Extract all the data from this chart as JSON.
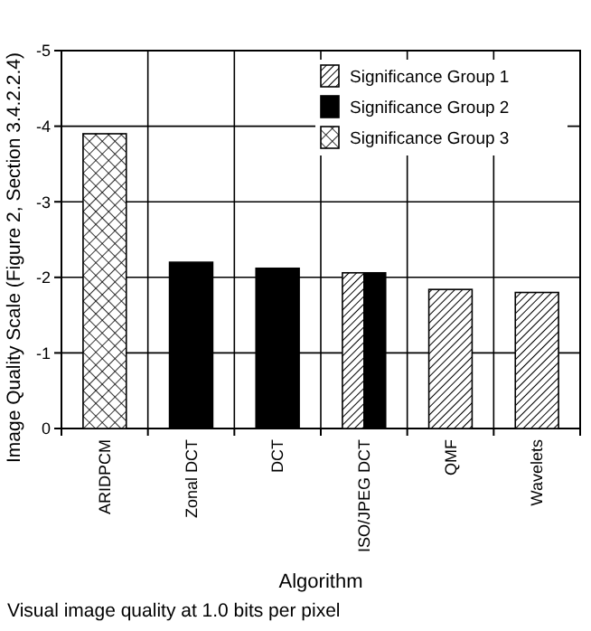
{
  "chart_data": {
    "type": "bar",
    "xlabel": "Algorithm",
    "ylabel": "Image Quality Scale (Figure 2, Section 3.4.2.2.4)",
    "categories": [
      "ARIDPCM",
      "Zonal DCT",
      "DCT",
      "ISO/JPEG DCT",
      "QMF",
      "Wavelets"
    ],
    "series": [
      {
        "name": "Significance Group 1",
        "color": "#000000",
        "values": [
          null,
          null,
          null,
          -2.06,
          -1.84,
          -1.8
        ]
      },
      {
        "name": "Significance Group 2",
        "color": "#000000",
        "values": [
          null,
          -2.2,
          -2.12,
          -2.06,
          null,
          null
        ]
      },
      {
        "name": "Significance Group 3",
        "color": "#000000",
        "values": [
          -3.9,
          null,
          null,
          null,
          null,
          null
        ]
      }
    ],
    "ylim": [
      0,
      -5
    ],
    "yticks": [
      0,
      -1,
      -2,
      -3,
      -4,
      -5
    ],
    "grid": true,
    "legend": "top right",
    "annotations": [
      "Visual image quality at 1.0 bits per pixel"
    ]
  }
}
